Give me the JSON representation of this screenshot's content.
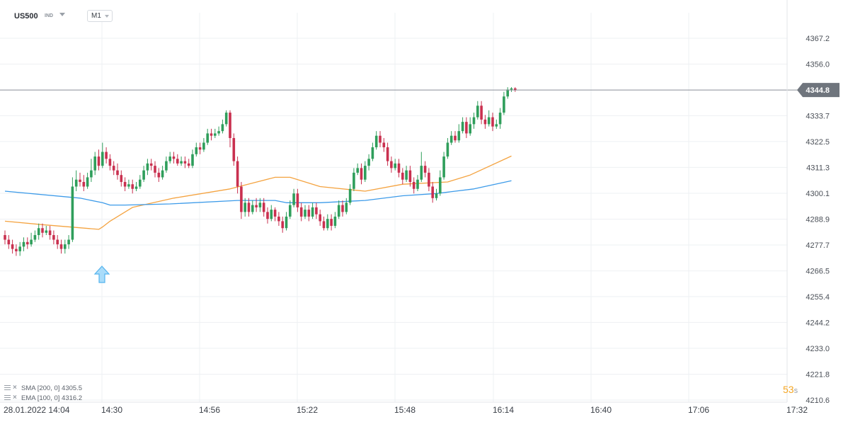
{
  "header": {
    "symbol": "US500",
    "symbol_type": "IND",
    "timeframe": "M1"
  },
  "indicators": [
    {
      "label": "SMA [200,  0]  4305.5",
      "color": "#3d9be9"
    },
    {
      "label": "EMA [100,  0]  4316.2",
      "color": "#f4a340"
    }
  ],
  "countdown": {
    "value": "53",
    "unit": "s"
  },
  "chart_data": {
    "type": "candlestick",
    "instrument": "US500",
    "interval": "M1",
    "y_ticks": [
      "4367.2",
      "4356.0",
      "4344.8",
      "4333.7",
      "4322.5",
      "4311.3",
      "4300.1",
      "4288.9",
      "4277.7",
      "4266.5",
      "4255.4",
      "4244.2",
      "4233.0",
      "4221.8",
      "4210.6"
    ],
    "ylim": [
      4210.6,
      4367.2
    ],
    "last_price": "4344.8",
    "x_ticks": [
      "28.01.2022  14:04",
      "14:30",
      "14:56",
      "15:22",
      "15:48",
      "16:14",
      "16:40",
      "17:06",
      "17:32"
    ],
    "grid": true,
    "colors": {
      "up": "#2f9e5b",
      "down": "#c9304f",
      "sma": "#3d9be9",
      "ema": "#f4a340",
      "price_line": "#8c9199",
      "marker": "#55b4ee"
    },
    "signal_marker": {
      "type": "buy-arrow",
      "time": "14:30"
    },
    "sma": {
      "name": "SMA [200, 0]",
      "value": 4305.5,
      "points": [
        [
          0,
          4301
        ],
        [
          20,
          4298
        ],
        [
          26,
          4296
        ],
        [
          28,
          4295
        ],
        [
          32,
          4295
        ],
        [
          44,
          4295.5
        ],
        [
          62,
          4297
        ],
        [
          72,
          4297
        ],
        [
          75,
          4296
        ],
        [
          84,
          4296
        ],
        [
          96,
          4297
        ],
        [
          106,
          4299
        ],
        [
          115,
          4300
        ],
        [
          125,
          4302
        ],
        [
          135,
          4305.5
        ]
      ]
    },
    "ema": {
      "name": "EMA [100, 0]",
      "value": 4316.2,
      "points": [
        [
          0,
          4288
        ],
        [
          10,
          4286.5
        ],
        [
          25,
          4284.5
        ],
        [
          26,
          4285.5
        ],
        [
          28,
          4288
        ],
        [
          34,
          4294
        ],
        [
          45,
          4298
        ],
        [
          60,
          4302
        ],
        [
          72,
          4307
        ],
        [
          76,
          4307
        ],
        [
          84,
          4303
        ],
        [
          96,
          4301
        ],
        [
          106,
          4304
        ],
        [
          118,
          4305
        ],
        [
          124,
          4308
        ],
        [
          135,
          4316.2
        ]
      ]
    },
    "candles": [
      [
        4282,
        4280,
        4284,
        4278
      ],
      [
        4280,
        4278,
        4282,
        4276
      ],
      [
        4278,
        4276,
        4280,
        4274
      ],
      [
        4276,
        4275,
        4278,
        4273
      ],
      [
        4275,
        4277,
        4279,
        4273
      ],
      [
        4277,
        4279,
        4281,
        4275
      ],
      [
        4279,
        4278,
        4281,
        4276
      ],
      [
        4278,
        4280,
        4283,
        4277
      ],
      [
        4280,
        4282,
        4284,
        4279
      ],
      [
        4282,
        4285,
        4287,
        4280
      ],
      [
        4285,
        4283,
        4287,
        4281
      ],
      [
        4283,
        4284,
        4286,
        4282
      ],
      [
        4284,
        4282,
        4286,
        4280
      ],
      [
        4282,
        4280,
        4284,
        4278
      ],
      [
        4280,
        4278,
        4282,
        4276
      ],
      [
        4278,
        4276,
        4280,
        4274
      ],
      [
        4276,
        4278,
        4280,
        4274
      ],
      [
        4278,
        4280,
        4282,
        4276
      ],
      [
        4280,
        4303,
        4307,
        4279
      ],
      [
        4303,
        4306,
        4310,
        4301
      ],
      [
        4306,
        4305,
        4309,
        4303
      ],
      [
        4305,
        4303,
        4308,
        4301
      ],
      [
        4303,
        4307,
        4309,
        4302
      ],
      [
        4307,
        4310,
        4315,
        4305
      ],
      [
        4310,
        4316,
        4318,
        4308
      ],
      [
        4316,
        4312,
        4319,
        4310
      ],
      [
        4312,
        4318,
        4322,
        4311
      ],
      [
        4318,
        4315,
        4320,
        4313
      ],
      [
        4315,
        4312,
        4317,
        4310
      ],
      [
        4312,
        4310,
        4314,
        4308
      ],
      [
        4310,
        4308,
        4313,
        4306
      ],
      [
        4308,
        4305,
        4310,
        4303
      ],
      [
        4305,
        4303,
        4307,
        4301
      ],
      [
        4303,
        4304,
        4306,
        4302
      ],
      [
        4304,
        4302,
        4306,
        4300
      ],
      [
        4302,
        4303,
        4305,
        4301
      ],
      [
        4303,
        4306,
        4308,
        4302
      ],
      [
        4306,
        4310,
        4312,
        4305
      ],
      [
        4310,
        4313,
        4315,
        4308
      ],
      [
        4313,
        4312,
        4315,
        4310
      ],
      [
        4312,
        4309,
        4314,
        4307
      ],
      [
        4309,
        4307,
        4311,
        4305
      ],
      [
        4307,
        4310,
        4312,
        4306
      ],
      [
        4310,
        4314,
        4316,
        4309
      ],
      [
        4314,
        4316,
        4318,
        4313
      ],
      [
        4316,
        4315,
        4318,
        4313
      ],
      [
        4315,
        4313,
        4317,
        4312
      ],
      [
        4313,
        4314,
        4316,
        4312
      ],
      [
        4314,
        4313,
        4316,
        4311
      ],
      [
        4313,
        4312,
        4315,
        4311
      ],
      [
        4312,
        4317,
        4319,
        4311
      ],
      [
        4317,
        4320,
        4322,
        4316
      ],
      [
        4320,
        4319,
        4322,
        4317
      ],
      [
        4319,
        4322,
        4324,
        4318
      ],
      [
        4322,
        4326,
        4328,
        4321
      ],
      [
        4326,
        4325,
        4328,
        4323
      ],
      [
        4325,
        4326,
        4328,
        4324
      ],
      [
        4326,
        4327,
        4329,
        4325
      ],
      [
        4327,
        4330,
        4332,
        4326
      ],
      [
        4330,
        4335,
        4336,
        4329
      ],
      [
        4335,
        4324,
        4336,
        4320
      ],
      [
        4324,
        4314,
        4326,
        4312
      ],
      [
        4314,
        4303,
        4316,
        4300
      ],
      [
        4303,
        4292,
        4305,
        4289
      ],
      [
        4292,
        4296,
        4298,
        4290
      ],
      [
        4296,
        4292,
        4298,
        4290
      ],
      [
        4292,
        4295,
        4297,
        4291
      ],
      [
        4295,
        4294,
        4298,
        4292
      ],
      [
        4294,
        4296,
        4298,
        4292
      ],
      [
        4296,
        4292,
        4298,
        4290
      ],
      [
        4292,
        4289,
        4294,
        4287
      ],
      [
        4289,
        4293,
        4295,
        4288
      ],
      [
        4293,
        4290,
        4294,
        4288
      ],
      [
        4290,
        4288,
        4292,
        4286
      ],
      [
        4288,
        4285,
        4290,
        4283
      ],
      [
        4285,
        4290,
        4292,
        4284
      ],
      [
        4290,
        4295,
        4297,
        4289
      ],
      [
        4295,
        4300,
        4302,
        4294
      ],
      [
        4300,
        4294,
        4302,
        4292
      ],
      [
        4294,
        4290,
        4296,
        4288
      ],
      [
        4290,
        4293,
        4295,
        4289
      ],
      [
        4293,
        4290,
        4295,
        4288
      ],
      [
        4290,
        4294,
        4296,
        4289
      ],
      [
        4294,
        4291,
        4296,
        4289
      ],
      [
        4291,
        4288,
        4293,
        4286
      ],
      [
        4288,
        4285,
        4290,
        4284
      ],
      [
        4285,
        4289,
        4291,
        4284
      ],
      [
        4289,
        4286,
        4291,
        4284
      ],
      [
        4286,
        4290,
        4292,
        4285
      ],
      [
        4290,
        4295,
        4297,
        4289
      ],
      [
        4295,
        4292,
        4297,
        4290
      ],
      [
        4292,
        4296,
        4298,
        4291
      ],
      [
        4296,
        4302,
        4304,
        4295
      ],
      [
        4302,
        4309,
        4311,
        4301
      ],
      [
        4309,
        4311,
        4313,
        4308
      ],
      [
        4311,
        4306,
        4313,
        4304
      ],
      [
        4306,
        4312,
        4314,
        4305
      ],
      [
        4312,
        4315,
        4317,
        4310
      ],
      [
        4315,
        4320,
        4322,
        4314
      ],
      [
        4320,
        4325,
        4327,
        4319
      ],
      [
        4325,
        4322,
        4327,
        4320
      ],
      [
        4322,
        4320,
        4324,
        4318
      ],
      [
        4320,
        4314,
        4322,
        4312
      ],
      [
        4314,
        4311,
        4316,
        4309
      ],
      [
        4311,
        4313,
        4315,
        4310
      ],
      [
        4313,
        4309,
        4315,
        4307
      ],
      [
        4309,
        4306,
        4311,
        4304
      ],
      [
        4306,
        4310,
        4312,
        4305
      ],
      [
        4310,
        4305,
        4312,
        4303
      ],
      [
        4305,
        4302,
        4307,
        4300
      ],
      [
        4302,
        4306,
        4308,
        4301
      ],
      [
        4306,
        4312,
        4318,
        4305
      ],
      [
        4312,
        4309,
        4314,
        4307
      ],
      [
        4309,
        4303,
        4311,
        4301
      ],
      [
        4303,
        4298,
        4305,
        4296
      ],
      [
        4298,
        4300,
        4302,
        4297
      ],
      [
        4300,
        4307,
        4310,
        4299
      ],
      [
        4307,
        4316,
        4318,
        4306
      ],
      [
        4316,
        4322,
        4324,
        4315
      ],
      [
        4322,
        4325,
        4327,
        4321
      ],
      [
        4325,
        4323,
        4327,
        4322
      ],
      [
        4323,
        4327,
        4330,
        4322
      ],
      [
        4327,
        4331,
        4333,
        4326
      ],
      [
        4331,
        4326,
        4333,
        4324
      ],
      [
        4326,
        4330,
        4333,
        4325
      ],
      [
        4330,
        4333,
        4335,
        4328
      ],
      [
        4333,
        4338,
        4340,
        4332
      ],
      [
        4338,
        4332,
        4340,
        4330
      ],
      [
        4332,
        4330,
        4334,
        4328
      ],
      [
        4330,
        4333,
        4336,
        4329
      ],
      [
        4333,
        4329,
        4335,
        4327
      ],
      [
        4329,
        4330,
        4332,
        4328
      ],
      [
        4330,
        4335,
        4337,
        4328
      ],
      [
        4335,
        4342,
        4344,
        4334
      ],
      [
        4342,
        4345,
        4346,
        4341
      ],
      [
        4345,
        4345.5,
        4346,
        4344
      ],
      [
        4345.5,
        4344.8,
        4346,
        4344
      ]
    ]
  }
}
